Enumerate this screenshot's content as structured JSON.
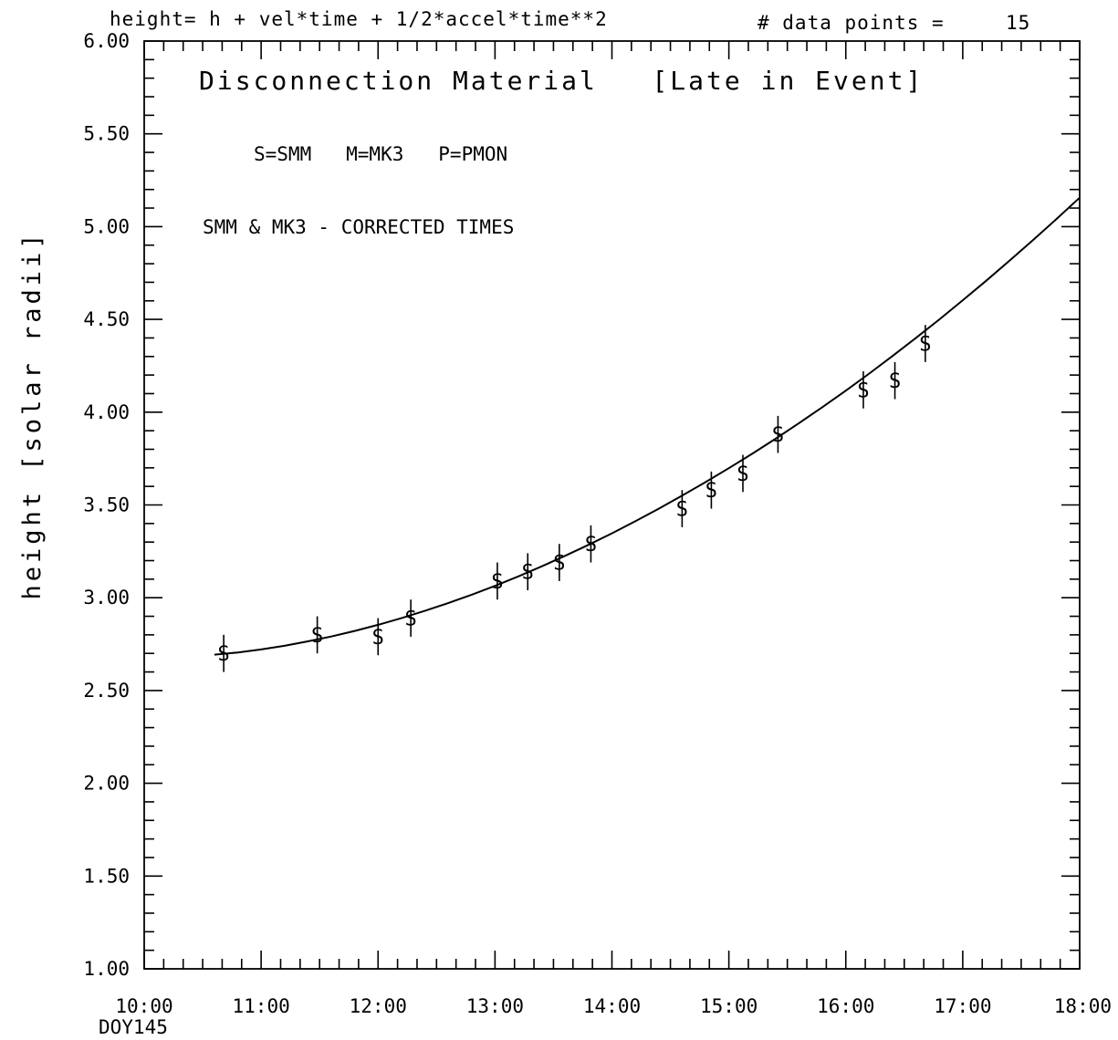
{
  "header": {
    "formula": "height= h + vel*time + 1/2*accel*time**2",
    "points_label": "# data points =",
    "points_count": "15"
  },
  "annotations": {
    "title": "Disconnection Material   [Late in Event]",
    "legend": "S=SMM   M=MK3   P=PMON",
    "note": "SMM & MK3 - CORRECTED TIMES"
  },
  "chart_data": {
    "type": "scatter",
    "title": "",
    "xlabel": "",
    "ylabel": "height [solar radii]",
    "x_origin_label": "DOY145",
    "xlim": [
      10.0,
      18.0
    ],
    "ylim": [
      1.0,
      6.0
    ],
    "x_ticks": [
      10,
      11,
      12,
      13,
      14,
      15,
      16,
      17,
      18
    ],
    "x_tick_labels": [
      "10:00",
      "11:00",
      "12:00",
      "13:00",
      "14:00",
      "15:00",
      "16:00",
      "17:00",
      "18:00"
    ],
    "y_ticks": [
      1.0,
      1.5,
      2.0,
      2.5,
      3.0,
      3.5,
      4.0,
      4.5,
      5.0,
      5.5,
      6.0
    ],
    "y_tick_labels": [
      "1.00",
      "1.50",
      "2.00",
      "2.50",
      "3.00",
      "3.50",
      "4.00",
      "4.50",
      "5.00",
      "5.50",
      "6.00"
    ],
    "marker_symbol": "S",
    "error_bar": 0.1,
    "series": [
      {
        "name": "SMM",
        "x": [
          10.68,
          11.48,
          12.0,
          12.28,
          13.02,
          13.28,
          13.55,
          13.82,
          14.6,
          14.85,
          15.12,
          15.42,
          16.15,
          16.42,
          16.68
        ],
        "y": [
          2.7,
          2.8,
          2.79,
          2.89,
          3.09,
          3.14,
          3.19,
          3.29,
          3.48,
          3.58,
          3.67,
          3.88,
          4.12,
          4.17,
          4.37
        ]
      }
    ],
    "fit_curve": {
      "x": [
        10.6,
        10.8,
        11.0,
        11.2,
        11.4,
        11.6,
        11.8,
        12.0,
        12.2,
        12.4,
        12.6,
        12.8,
        13.0,
        13.2,
        13.4,
        13.6,
        13.8,
        14.0,
        14.2,
        14.4,
        14.6,
        14.8,
        15.0,
        15.2,
        15.4,
        15.6,
        15.8,
        16.0,
        16.2,
        16.4,
        16.6,
        16.8,
        17.0,
        17.2,
        17.4,
        17.6,
        17.8,
        18.0
      ],
      "y": [
        2.693,
        2.705,
        2.721,
        2.741,
        2.765,
        2.791,
        2.821,
        2.854,
        2.89,
        2.929,
        2.971,
        3.016,
        3.064,
        3.115,
        3.169,
        3.226,
        3.285,
        3.347,
        3.412,
        3.48,
        3.55,
        3.623,
        3.698,
        3.776,
        3.857,
        3.941,
        4.027,
        4.116,
        4.208,
        4.303,
        4.4,
        4.5,
        4.603,
        4.708,
        4.816,
        4.927,
        5.04,
        5.156
      ]
    }
  }
}
